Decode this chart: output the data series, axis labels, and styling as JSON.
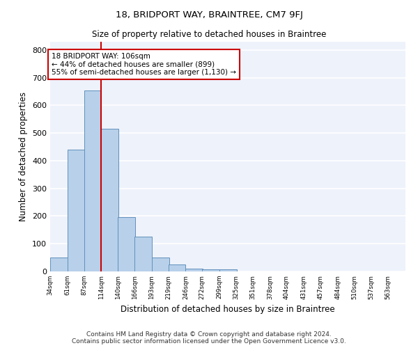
{
  "title": "18, BRIDPORT WAY, BRAINTREE, CM7 9FJ",
  "subtitle": "Size of property relative to detached houses in Braintree",
  "xlabel": "Distribution of detached houses by size in Braintree",
  "ylabel": "Number of detached properties",
  "bar_color": "#b8d0ea",
  "bar_edge_color": "#6090bb",
  "background_color": "#eef2fb",
  "grid_color": "#ffffff",
  "property_line_color": "#cc0000",
  "annotation_text": "18 BRIDPORT WAY: 106sqm\n← 44% of detached houses are smaller (899)\n55% of semi-detached houses are larger (1,130) →",
  "annotation_box_color": "#cc0000",
  "footer_text": "Contains HM Land Registry data © Crown copyright and database right 2024.\nContains public sector information licensed under the Open Government Licence v3.0.",
  "bins": [
    34,
    61,
    87,
    114,
    140,
    166,
    193,
    219,
    246,
    272,
    299,
    325,
    351,
    378,
    404,
    431,
    457,
    484,
    510,
    537,
    563,
    590
  ],
  "bin_labels": [
    "34sqm",
    "61sqm",
    "87sqm",
    "114sqm",
    "140sqm",
    "166sqm",
    "193sqm",
    "219sqm",
    "246sqm",
    "272sqm",
    "299sqm",
    "325sqm",
    "351sqm",
    "378sqm",
    "404sqm",
    "431sqm",
    "457sqm",
    "484sqm",
    "510sqm",
    "537sqm",
    "563sqm"
  ],
  "bar_heights": [
    50,
    440,
    655,
    515,
    197,
    127,
    50,
    25,
    10,
    7,
    7,
    0,
    0,
    0,
    0,
    0,
    0,
    0,
    0,
    0,
    0
  ],
  "property_line_bin_index": 3,
  "ylim": [
    0,
    830
  ],
  "yticks": [
    0,
    100,
    200,
    300,
    400,
    500,
    600,
    700,
    800
  ]
}
